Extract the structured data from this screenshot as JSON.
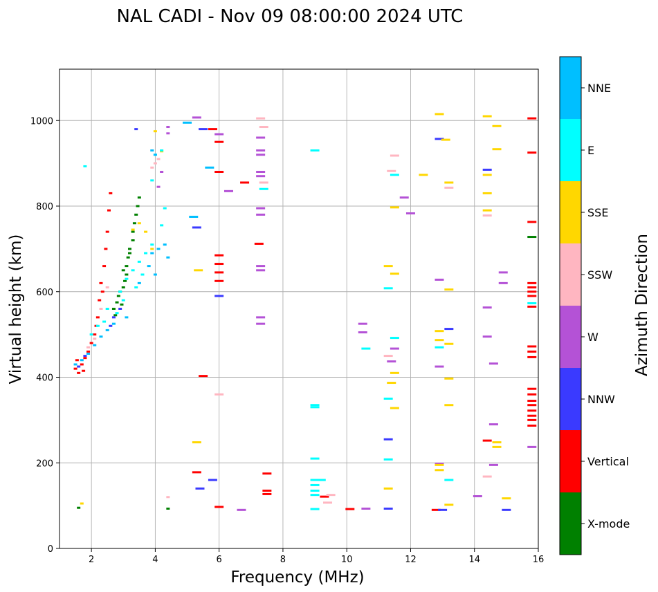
{
  "chart_data": {
    "type": "scatter",
    "title": "NAL CADI - Nov 09 08:00:00 2024 UTC",
    "xlabel": "Frequency (MHz)",
    "ylabel": "Virtual height (km)",
    "xlim": [
      1,
      16
    ],
    "ylim": [
      0,
      1120
    ],
    "xticks": [
      2,
      4,
      6,
      8,
      10,
      12,
      14,
      16
    ],
    "yticks": [
      0,
      200,
      400,
      600,
      800,
      1000
    ],
    "grid": true,
    "colorbar": {
      "label": "Azimuth Direction",
      "categories": [
        "X-mode",
        "Vertical",
        "NNW",
        "W",
        "SSW",
        "SSE",
        "E",
        "NNE"
      ],
      "colors": [
        "#008000",
        "#ff0000",
        "#3a3aff",
        "#b452d6",
        "#ffb6c1",
        "#ffd700",
        "#00ffff",
        "#00bfff"
      ]
    },
    "series": [
      {
        "name": "X-mode",
        "points": [
          [
            2.7,
            560
          ],
          [
            2.8,
            575
          ],
          [
            2.85,
            590
          ],
          [
            2.9,
            600
          ],
          [
            3.0,
            610
          ],
          [
            3.05,
            625
          ],
          [
            3.1,
            640
          ],
          [
            3.1,
            660
          ],
          [
            3.15,
            680
          ],
          [
            3.2,
            700
          ],
          [
            3.3,
            720
          ],
          [
            3.3,
            740
          ],
          [
            3.35,
            760
          ],
          [
            3.4,
            780
          ],
          [
            3.45,
            800
          ],
          [
            3.5,
            820
          ],
          [
            2.75,
            545
          ],
          [
            2.95,
            570
          ],
          [
            3.0,
            650
          ],
          [
            3.2,
            690
          ],
          [
            4.4,
            93
          ],
          [
            1.6,
            95
          ],
          [
            15.8,
            728
          ]
        ]
      },
      {
        "name": "Vertical",
        "points": [
          [
            1.5,
            420
          ],
          [
            1.6,
            410
          ],
          [
            1.7,
            430
          ],
          [
            1.8,
            445
          ],
          [
            1.9,
            460
          ],
          [
            2.0,
            480
          ],
          [
            2.1,
            500
          ],
          [
            2.2,
            540
          ],
          [
            2.25,
            580
          ],
          [
            2.3,
            620
          ],
          [
            2.4,
            660
          ],
          [
            2.45,
            700
          ],
          [
            2.5,
            740
          ],
          [
            2.55,
            790
          ],
          [
            2.6,
            830
          ],
          [
            2.35,
            600
          ],
          [
            2.15,
            520
          ],
          [
            1.55,
            440
          ],
          [
            1.75,
            415
          ],
          [
            5.3,
            178
          ],
          [
            5.5,
            403
          ],
          [
            5.8,
            980
          ],
          [
            6.0,
            685
          ],
          [
            6.0,
            665
          ],
          [
            6.0,
            645
          ],
          [
            6.0,
            625
          ],
          [
            6.0,
            950
          ],
          [
            6.0,
            880
          ],
          [
            6.0,
            97
          ],
          [
            6.8,
            855
          ],
          [
            7.25,
            712
          ],
          [
            7.5,
            175
          ],
          [
            7.5,
            135
          ],
          [
            7.5,
            127
          ],
          [
            9.3,
            121
          ],
          [
            10.1,
            92
          ],
          [
            12.8,
            90
          ],
          [
            15.8,
            1005
          ],
          [
            15.8,
            925
          ],
          [
            15.8,
            763
          ],
          [
            15.8,
            620
          ],
          [
            15.8,
            610
          ],
          [
            15.8,
            600
          ],
          [
            15.8,
            590
          ],
          [
            15.8,
            565
          ],
          [
            15.8,
            472
          ],
          [
            15.8,
            460
          ],
          [
            15.8,
            447
          ],
          [
            15.8,
            373
          ],
          [
            15.8,
            360
          ],
          [
            15.8,
            345
          ],
          [
            15.8,
            335
          ],
          [
            15.8,
            322
          ],
          [
            15.8,
            310
          ],
          [
            15.8,
            300
          ],
          [
            15.8,
            287
          ],
          [
            14.4,
            252
          ]
        ]
      },
      {
        "name": "NNW",
        "points": [
          [
            2.6,
            520
          ],
          [
            2.7,
            540
          ],
          [
            2.9,
            560
          ],
          [
            1.6,
            425
          ],
          [
            1.8,
            450
          ],
          [
            3.4,
            980
          ],
          [
            5.5,
            980
          ],
          [
            5.3,
            750
          ],
          [
            5.4,
            140
          ],
          [
            5.8,
            160
          ],
          [
            6.0,
            590
          ],
          [
            11.3,
            255
          ],
          [
            11.3,
            93
          ],
          [
            12.9,
            957
          ],
          [
            13.0,
            90
          ],
          [
            13.2,
            513
          ],
          [
            14.4,
            885
          ],
          [
            15.0,
            90
          ]
        ]
      },
      {
        "name": "W",
        "points": [
          [
            4.4,
            985
          ],
          [
            4.4,
            970
          ],
          [
            4.2,
            880
          ],
          [
            4.1,
            845
          ],
          [
            5.3,
            1007
          ],
          [
            6.0,
            968
          ],
          [
            6.3,
            835
          ],
          [
            6.7,
            90
          ],
          [
            7.3,
            960
          ],
          [
            7.3,
            930
          ],
          [
            7.3,
            920
          ],
          [
            7.3,
            880
          ],
          [
            7.3,
            870
          ],
          [
            7.3,
            795
          ],
          [
            7.3,
            780
          ],
          [
            7.3,
            660
          ],
          [
            7.3,
            650
          ],
          [
            7.3,
            540
          ],
          [
            7.3,
            525
          ],
          [
            10.5,
            525
          ],
          [
            10.5,
            505
          ],
          [
            11.4,
            437
          ],
          [
            11.5,
            467
          ],
          [
            12.9,
            628
          ],
          [
            12.9,
            425
          ],
          [
            12.0,
            783
          ],
          [
            12.9,
            198
          ],
          [
            14.1,
            122
          ],
          [
            14.4,
            563
          ],
          [
            14.4,
            495
          ],
          [
            14.6,
            432
          ],
          [
            14.6,
            290
          ],
          [
            14.6,
            195
          ],
          [
            14.9,
            645
          ],
          [
            14.9,
            620
          ],
          [
            15.8,
            237
          ],
          [
            11.8,
            820
          ],
          [
            10.6,
            93
          ]
        ]
      },
      {
        "name": "SSW",
        "points": [
          [
            1.9,
            470
          ],
          [
            2.1,
            490
          ],
          [
            2.3,
            560
          ],
          [
            2.5,
            610
          ],
          [
            3.9,
            890
          ],
          [
            4.0,
            900
          ],
          [
            4.1,
            910
          ],
          [
            4.4,
            120
          ],
          [
            6.0,
            360
          ],
          [
            7.3,
            1005
          ],
          [
            7.4,
            985
          ],
          [
            7.4,
            855
          ],
          [
            9.5,
            125
          ],
          [
            9.4,
            107
          ],
          [
            11.3,
            450
          ],
          [
            11.4,
            882
          ],
          [
            11.5,
            918
          ],
          [
            13.2,
            843
          ],
          [
            14.4,
            778
          ],
          [
            14.4,
            168
          ]
        ]
      },
      {
        "name": "SSE",
        "points": [
          [
            3.3,
            745
          ],
          [
            3.5,
            760
          ],
          [
            3.7,
            740
          ],
          [
            3.9,
            700
          ],
          [
            4.0,
            975
          ],
          [
            4.2,
            928
          ],
          [
            5.35,
            650
          ],
          [
            5.3,
            248
          ],
          [
            11.3,
            660
          ],
          [
            11.4,
            387
          ],
          [
            11.5,
            410
          ],
          [
            11.5,
            328
          ],
          [
            11.3,
            140
          ],
          [
            12.4,
            873
          ],
          [
            12.9,
            1015
          ],
          [
            12.9,
            508
          ],
          [
            12.9,
            487
          ],
          [
            12.9,
            195
          ],
          [
            12.9,
            183
          ],
          [
            13.1,
            955
          ],
          [
            13.2,
            855
          ],
          [
            13.2,
            605
          ],
          [
            13.2,
            478
          ],
          [
            13.2,
            397
          ],
          [
            13.2,
            335
          ],
          [
            13.2,
            102
          ],
          [
            14.4,
            1010
          ],
          [
            14.4,
            873
          ],
          [
            14.4,
            830
          ],
          [
            14.4,
            790
          ],
          [
            14.7,
            987
          ],
          [
            14.7,
            933
          ],
          [
            14.7,
            248
          ],
          [
            14.7,
            237
          ],
          [
            15.0,
            117
          ],
          [
            11.5,
            797
          ],
          [
            11.5,
            642
          ],
          [
            1.7,
            105
          ]
        ]
      },
      {
        "name": "E",
        "points": [
          [
            2.0,
            500
          ],
          [
            2.2,
            520
          ],
          [
            2.5,
            560
          ],
          [
            2.9,
            600
          ],
          [
            3.1,
            630
          ],
          [
            3.3,
            650
          ],
          [
            3.5,
            670
          ],
          [
            3.7,
            690
          ],
          [
            3.9,
            710
          ],
          [
            3.6,
            640
          ],
          [
            3.4,
            610
          ],
          [
            3.0,
            580
          ],
          [
            2.8,
            550
          ],
          [
            2.4,
            530
          ],
          [
            4.0,
            920
          ],
          [
            4.2,
            930
          ],
          [
            4.3,
            795
          ],
          [
            4.2,
            755
          ],
          [
            3.9,
            860
          ],
          [
            9.0,
            930
          ],
          [
            9.0,
            335
          ],
          [
            9.0,
            330
          ],
          [
            9.0,
            210
          ],
          [
            9.0,
            160
          ],
          [
            9.0,
            148
          ],
          [
            9.0,
            135
          ],
          [
            9.0,
            125
          ],
          [
            9.0,
            92
          ],
          [
            9.2,
            160
          ],
          [
            10.6,
            467
          ],
          [
            11.3,
            608
          ],
          [
            11.3,
            350
          ],
          [
            11.3,
            208
          ],
          [
            11.5,
            492
          ],
          [
            11.5,
            873
          ],
          [
            12.9,
            470
          ],
          [
            13.2,
            160
          ],
          [
            7.4,
            840
          ],
          [
            15.8,
            573
          ],
          [
            1.8,
            893
          ]
        ]
      },
      {
        "name": "NNE",
        "points": [
          [
            1.5,
            430
          ],
          [
            1.7,
            440
          ],
          [
            1.9,
            455
          ],
          [
            2.1,
            475
          ],
          [
            2.3,
            495
          ],
          [
            2.5,
            510
          ],
          [
            2.7,
            525
          ],
          [
            3.1,
            540
          ],
          [
            3.5,
            620
          ],
          [
            3.8,
            660
          ],
          [
            4.0,
            640
          ],
          [
            3.9,
            690
          ],
          [
            4.1,
            700
          ],
          [
            4.3,
            710
          ],
          [
            4.4,
            680
          ],
          [
            4.0,
            920
          ],
          [
            3.9,
            930
          ],
          [
            5.0,
            995
          ],
          [
            5.2,
            775
          ],
          [
            5.7,
            890
          ]
        ]
      }
    ]
  }
}
